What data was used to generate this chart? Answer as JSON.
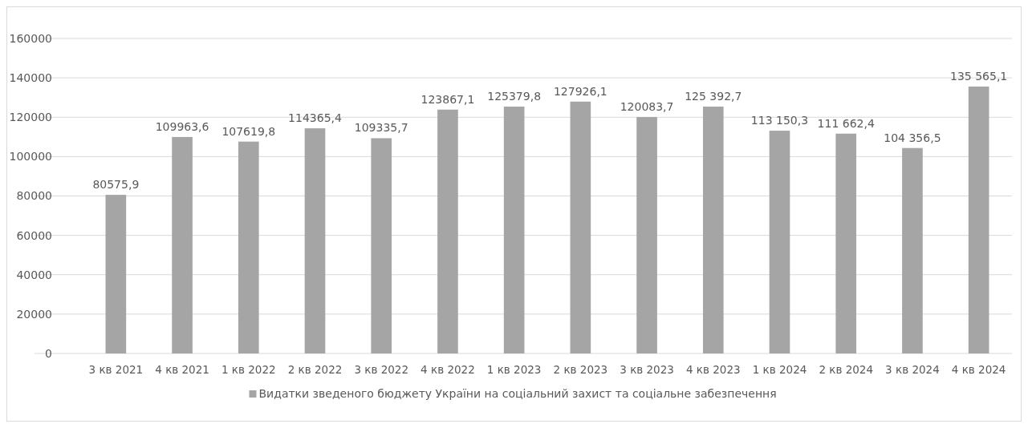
{
  "chart_data": {
    "type": "bar",
    "categories": [
      "3 кв 2021",
      "4 кв 2021",
      "1 кв 2022",
      "2 кв 2022",
      "3 кв 2022",
      "4 кв 2022",
      "1 кв 2023",
      "2 кв 2023",
      "3 кв 2023",
      "4 кв 2023",
      "1 кв 2024",
      "2 кв 2024",
      "3 кв 2024",
      "4 кв 2024"
    ],
    "series": [
      {
        "name": "Видатки зведеного бюджету України на соціальний захист та соціальне забезпечення",
        "color": "#a5a5a5",
        "values": [
          80575.9,
          109963.6,
          107619.8,
          114365.4,
          109335.7,
          123867.1,
          125379.8,
          127926.1,
          120083.7,
          125392.7,
          113150.3,
          111662.4,
          104356.5,
          135565.1
        ],
        "value_labels": [
          "80575,9",
          "109963,6",
          "107619,8",
          "114365,4",
          "109335,7",
          "123867,1",
          "125379,8",
          "127926,1",
          "120083,7",
          "125 392,7",
          "113 150,3",
          "111 662,4",
          "104 356,5",
          "135 565,1"
        ]
      }
    ],
    "ylim": [
      0,
      160000
    ],
    "yticks": [
      0,
      20000,
      40000,
      60000,
      80000,
      100000,
      120000,
      140000,
      160000
    ],
    "grid": "y",
    "legend": "bottom"
  }
}
